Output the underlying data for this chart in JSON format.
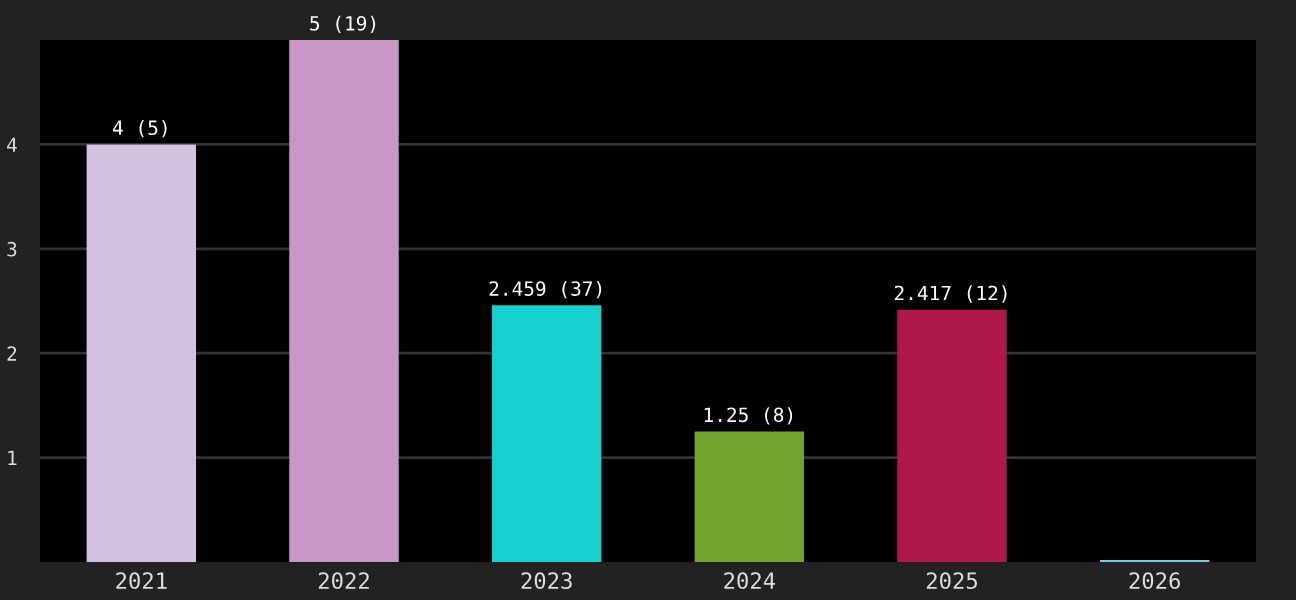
{
  "chart_data": {
    "type": "bar",
    "categories": [
      "2021",
      "2022",
      "2023",
      "2024",
      "2025",
      "2026"
    ],
    "values": [
      4,
      5,
      2.459,
      1.25,
      2.417,
      0.02
    ],
    "colors": [
      "#d3c1e0",
      "#c997c6",
      "#17cfcc",
      "#72a32f",
      "#b0174a",
      "#7ec8e3"
    ],
    "value_labels": [
      "4 (5)",
      "5 (19)",
      "2.459 (37)",
      "1.25 (8)",
      "2.417 (12)",
      null
    ],
    "ylim": [
      0,
      5
    ],
    "yticks": [
      1,
      2,
      3,
      4
    ],
    "grid": "y",
    "legend": false
  }
}
